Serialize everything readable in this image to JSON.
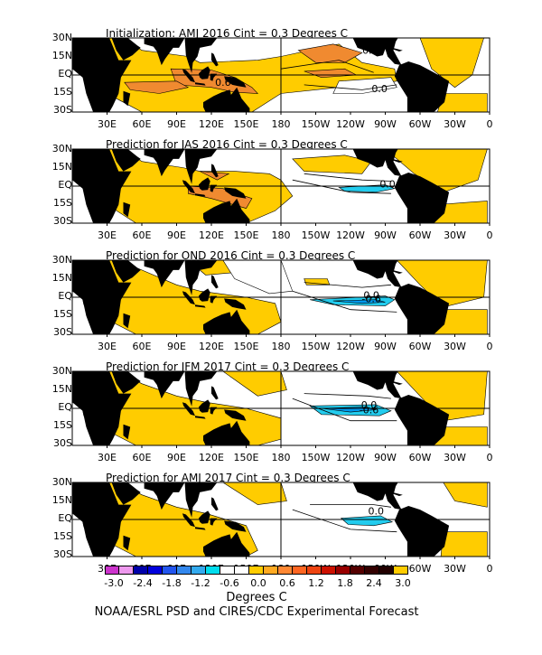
{
  "panels": [
    {
      "title": "Initialization: AMJ 2016  Cint = 0.3 Degrees C",
      "contour_labels": [
        "0.6",
        "0.6",
        "0.0"
      ]
    },
    {
      "title": "Prediction for JAS 2016  Cint = 0.3 Degrees C",
      "contour_labels": [
        "0.0"
      ]
    },
    {
      "title": "Prediction for OND 2016  Cint = 0.3 Degrees C",
      "contour_labels": [
        "0.0",
        "-0.6"
      ]
    },
    {
      "title": "Prediction for JFM 2017  Cint = 0.3 Degrees C",
      "contour_labels": [
        "0.0",
        "-0.6"
      ]
    },
    {
      "title": "Prediction for AMJ 2017  Cint = 0.3 Degrees C",
      "contour_labels": [
        "0.0"
      ]
    }
  ],
  "lat_labels": [
    "30N",
    "15N",
    "EQ",
    "15S",
    "30S"
  ],
  "lon_labels": [
    "30E",
    "60E",
    "90E",
    "120E",
    "150E",
    "180",
    "150W",
    "120W",
    "90W",
    "60W",
    "30W",
    "0"
  ],
  "colorbar": {
    "colors": [
      "#cc33cc",
      "#ee99ee",
      "#0000aa",
      "#0000dd",
      "#2255ee",
      "#3388ee",
      "#33aaee",
      "#00ddee",
      "#ffffff",
      "#ffffff",
      "#ffcc00",
      "#ffaa22",
      "#ff8833",
      "#ff6622",
      "#ee4411",
      "#cc1100",
      "#990000",
      "#550000",
      "#330000",
      "#220000",
      "#ffcc00"
    ],
    "ticks": [
      "-3.0",
      "-2.4",
      "-1.8",
      "-1.2",
      "-0.6",
      "0.0",
      "0.6",
      "1.2",
      "1.8",
      "2.4",
      "3.0"
    ],
    "units": "Degrees C"
  },
  "footer": "NOAA/ESRL PSD and CIRES/CDC Experimental Forecast",
  "colors": {
    "land": "#000000",
    "warm_light": "#ffcc00",
    "warm_mid": "#f0a020",
    "warm_orange": "#f08a30",
    "cool_cyan": "#22ccee",
    "cool_blue": "#0099ee"
  }
}
